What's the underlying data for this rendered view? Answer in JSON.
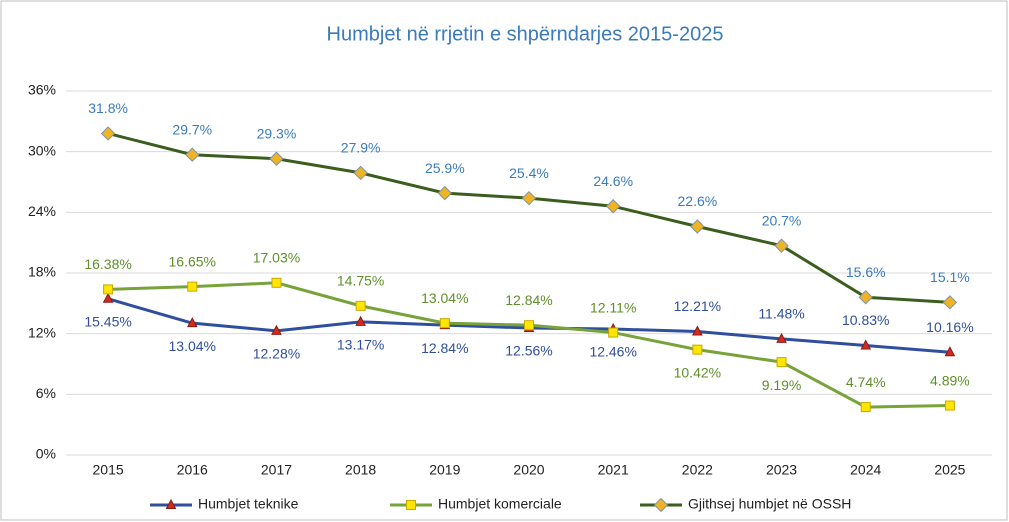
{
  "chart_data": {
    "type": "line",
    "title": "Humbjet në rrjetin e shpërndarjes 2015-2025",
    "categories": [
      "2015",
      "2016",
      "2017",
      "2018",
      "2019",
      "2020",
      "2021",
      "2022",
      "2023",
      "2024",
      "2025"
    ],
    "ylim": [
      0,
      36
    ],
    "yticks": [
      {
        "value": 0,
        "label": "0%"
      },
      {
        "value": 6,
        "label": "6%"
      },
      {
        "value": 12,
        "label": "12%"
      },
      {
        "value": 18,
        "label": "18%"
      },
      {
        "value": 24,
        "label": "24%"
      },
      {
        "value": 30,
        "label": "30%"
      },
      {
        "value": 36,
        "label": "36%"
      }
    ],
    "grid": true,
    "legend": "bottom",
    "series": [
      {
        "name": "Humbjet teknike",
        "color": "#2f4f9e",
        "marker_color": "#d62a1e",
        "label_color": "#2f4f9e",
        "values": [
          15.45,
          13.04,
          12.28,
          13.17,
          12.84,
          12.56,
          12.46,
          12.21,
          11.48,
          10.83,
          10.16
        ],
        "value_labels": [
          "15.45%",
          "13.04%",
          "12.28%",
          "13.17%",
          "12.84%",
          "12.56%",
          "12.46%",
          "12.21%",
          "11.48%",
          "10.83%",
          "10.16%"
        ]
      },
      {
        "name": "Humbjet komerciale",
        "color": "#77a33a",
        "marker_color": "#ffe600",
        "label_color": "#5f8f2a",
        "values": [
          16.38,
          16.65,
          17.03,
          14.75,
          13.04,
          12.84,
          12.11,
          10.42,
          9.19,
          4.74,
          4.89
        ],
        "value_labels": [
          "16.38%",
          "16.65%",
          "17.03%",
          "14.75%",
          "13.04%",
          "12.84%",
          "12.11%",
          "10.42%",
          "9.19%",
          "4.74%",
          "4.89%"
        ]
      },
      {
        "name": "Gjithsej humbjet në OSSH",
        "color": "#3b5e1f",
        "marker_color": "#f0b323",
        "label_color": "#3a7bbf",
        "values": [
          31.8,
          29.7,
          29.3,
          27.9,
          25.9,
          25.4,
          24.6,
          22.6,
          20.7,
          15.6,
          15.1
        ],
        "value_labels": [
          "31.8%",
          "29.7%",
          "29.3%",
          "27.9%",
          "25.9%",
          "25.4%",
          "24.6%",
          "22.6%",
          "20.7%",
          "15.6%",
          "15.1%"
        ]
      }
    ]
  }
}
